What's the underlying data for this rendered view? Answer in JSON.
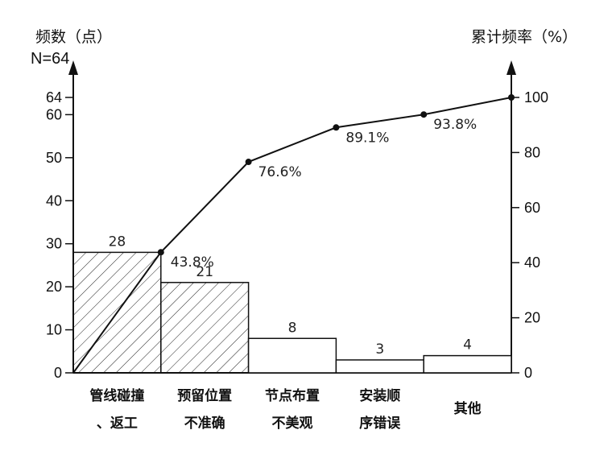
{
  "chart_data": {
    "type": "bar",
    "ylabel_left": "频数（点）",
    "n_label": "N=64",
    "ylabel_right": "累计频率（%）",
    "categories": [
      [
        "管线碰撞",
        "、返工"
      ],
      [
        "预留位置",
        "不准确"
      ],
      [
        "节点布置",
        "不美观"
      ],
      [
        "安装顺",
        "序错误"
      ],
      [
        "其他"
      ]
    ],
    "values": [
      28,
      21,
      8,
      3,
      4
    ],
    "hatched": [
      true,
      true,
      false,
      false,
      false
    ],
    "left_ticks": [
      "0",
      "10",
      "20",
      "30",
      "40",
      "50",
      "60",
      "64"
    ],
    "left_tick_values": [
      0,
      10,
      20,
      30,
      40,
      50,
      60,
      64
    ],
    "left_max": 64,
    "right_ticks": [
      "0",
      "20",
      "40",
      "60",
      "80",
      "100"
    ],
    "right_tick_values": [
      0,
      20,
      40,
      60,
      80,
      100
    ],
    "cumulative_percent": [
      0,
      43.8,
      76.6,
      89.1,
      93.8,
      100
    ],
    "cumulative_labels": [
      "",
      "43.8%",
      "76.6%",
      "89.1%",
      "93.8%",
      ""
    ]
  }
}
